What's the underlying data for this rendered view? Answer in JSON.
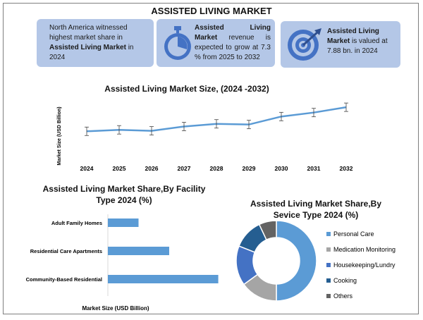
{
  "header": {
    "title": "ASSISTED LIVING MARKET"
  },
  "cards": {
    "card1": {
      "pre": "North America witnessed highest market share in ",
      "bold": "Assisted Living Market",
      "post": " in 2024",
      "icon": "globe-icon"
    },
    "card2": {
      "bold": "Assisted Living Market",
      "post": " revenue is expected to grow at 7.3 % from 2025 to 2032",
      "icon": "stopwatch-icon"
    },
    "card3": {
      "bold": "Assisted Living Market",
      "post": " is valued at 7.88 bn. in 2024",
      "icon": "target-icon"
    }
  },
  "colors": {
    "card_bg": "#b4c7e7",
    "line": "#5b9bd5",
    "bar": "#5b9bd5",
    "icon": "#4472c4"
  },
  "chart_data": [
    {
      "type": "line",
      "title": "Assisted Living Market Size, (2024 -2032)",
      "ylabel": "Market Size (USD Billion)",
      "xlabel": "",
      "x": [
        "2024",
        "2025",
        "2026",
        "2027",
        "2028",
        "2029",
        "2030",
        "2031",
        "2032"
      ],
      "values": [
        7.88,
        8.1,
        7.95,
        8.6,
        9.0,
        8.9,
        10.1,
        10.7,
        11.5
      ],
      "ylim": [
        6,
        13
      ],
      "error_bars": true,
      "grid": false
    },
    {
      "type": "bar",
      "orientation": "horizontal",
      "title": "Assisted Living Market Share,By Facility Type 2024 (%)",
      "xlabel": "Market Size (USD Billion)",
      "categories": [
        "Adult Family Homes",
        "Residential Care Apartments",
        "Community-Based Residential"
      ],
      "values": [
        25,
        50,
        90
      ],
      "xlim": [
        0,
        100
      ]
    },
    {
      "type": "pie",
      "donut": true,
      "title": "Assisted Living Market Share,By Sevice Type 2024 (%)",
      "legend_position": "right",
      "labels": [
        "Personal Care",
        "Medication Monitoring",
        "Housekeeping/Lundry",
        "Cooking",
        "Others"
      ],
      "values": [
        50,
        15,
        16,
        12,
        7
      ],
      "colors": [
        "#5b9bd5",
        "#a5a5a5",
        "#4472c4",
        "#255e91",
        "#636363"
      ]
    }
  ]
}
